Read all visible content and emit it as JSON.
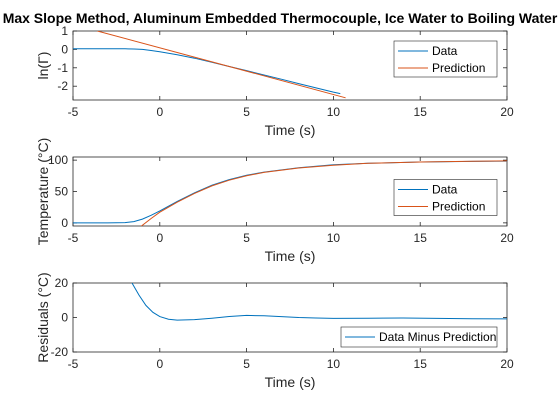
{
  "figure_title": "Max Slope Method, Aluminum Embedded Thermocouple, Ice Water to Boiling Water",
  "chart_data": [
    {
      "type": "line",
      "title": "Max Slope Method, Aluminum Embedded Thermocouple, Ice Water to Boiling Water",
      "xlabel": "Time (s)",
      "ylabel": "ln(Γ)",
      "xlim": [
        -5,
        20
      ],
      "ylim": [
        -2.75,
        1
      ],
      "xticks": [
        "-5",
        "0",
        "5",
        "10",
        "15",
        "20"
      ],
      "yticks": [
        "1",
        "0",
        "-1",
        "-2"
      ],
      "ytick_values": [
        1,
        0,
        -1,
        -2
      ],
      "grid": false,
      "legend_position": "top-right",
      "series": [
        {
          "name": "Data",
          "color": "#0072bd",
          "x": [
            -5,
            -4,
            -3,
            -2,
            -1.5,
            -1,
            -0.5,
            0,
            1,
            2,
            3,
            4,
            5,
            6,
            7,
            8,
            9,
            10,
            10.4
          ],
          "y": [
            0.03,
            0.03,
            0.03,
            0.03,
            0.02,
            0,
            -0.06,
            -0.13,
            -0.29,
            -0.48,
            -0.7,
            -0.93,
            -1.15,
            -1.39,
            -1.62,
            -1.86,
            -2.09,
            -2.32,
            -2.4
          ]
        },
        {
          "name": "Prediction",
          "color": "#d95319",
          "x": [
            -3.6,
            10.7
          ],
          "y": [
            1.0,
            -2.63
          ]
        }
      ]
    },
    {
      "type": "line",
      "xlabel": "Time (s)",
      "ylabel": "Temperature (°C)",
      "xlim": [
        -5,
        20
      ],
      "ylim": [
        -5,
        105
      ],
      "xticks": [
        "-5",
        "0",
        "5",
        "10",
        "15",
        "20"
      ],
      "yticks": [
        "100",
        "50",
        "0"
      ],
      "ytick_values": [
        100,
        50,
        0
      ],
      "grid": false,
      "legend_position": "right",
      "series": [
        {
          "name": "Data",
          "color": "#0072bd",
          "x": [
            -5,
            -3,
            -2,
            -1.5,
            -1,
            -0.5,
            0,
            1,
            2,
            3,
            4,
            5,
            6,
            8,
            10,
            12,
            15,
            18,
            20
          ],
          "y": [
            0,
            0,
            0.5,
            2,
            6,
            12,
            19,
            34,
            48,
            60,
            69,
            76,
            81,
            88,
            92.5,
            95,
            97,
            98,
            98.5
          ]
        },
        {
          "name": "Prediction",
          "color": "#d95319",
          "x": [
            -1.2,
            -0.5,
            0,
            1,
            2,
            3,
            4,
            5,
            6,
            8,
            10,
            12,
            15,
            18,
            20
          ],
          "y": [
            -8,
            7,
            17,
            33,
            47,
            59,
            68,
            75,
            80.5,
            87.5,
            92,
            95,
            97,
            98.2,
            98.8
          ]
        }
      ]
    },
    {
      "type": "line",
      "xlabel": "Time (s)",
      "ylabel": "Residuals (°C)",
      "xlim": [
        -5,
        20
      ],
      "ylim": [
        -20,
        20
      ],
      "xticks": [
        "-5",
        "0",
        "5",
        "10",
        "15",
        "20"
      ],
      "yticks": [
        "20",
        "0",
        "-20"
      ],
      "ytick_values": [
        20,
        0,
        -20
      ],
      "grid": false,
      "legend_position": "bottom-right",
      "series": [
        {
          "name": "Data Minus Prediction",
          "color": "#0072bd",
          "x": [
            -1.6,
            -1.2,
            -0.8,
            -0.4,
            0,
            0.5,
            1,
            2,
            3,
            4,
            5,
            6,
            7,
            8,
            9,
            10,
            12,
            14,
            16,
            18,
            20
          ],
          "y": [
            20,
            13,
            7,
            3,
            0.5,
            -1,
            -1.5,
            -1.2,
            -0.4,
            0.6,
            1.2,
            1.0,
            0.5,
            0,
            -0.3,
            -0.5,
            -0.4,
            -0.3,
            -0.5,
            -0.7,
            -0.8
          ]
        }
      ]
    }
  ]
}
